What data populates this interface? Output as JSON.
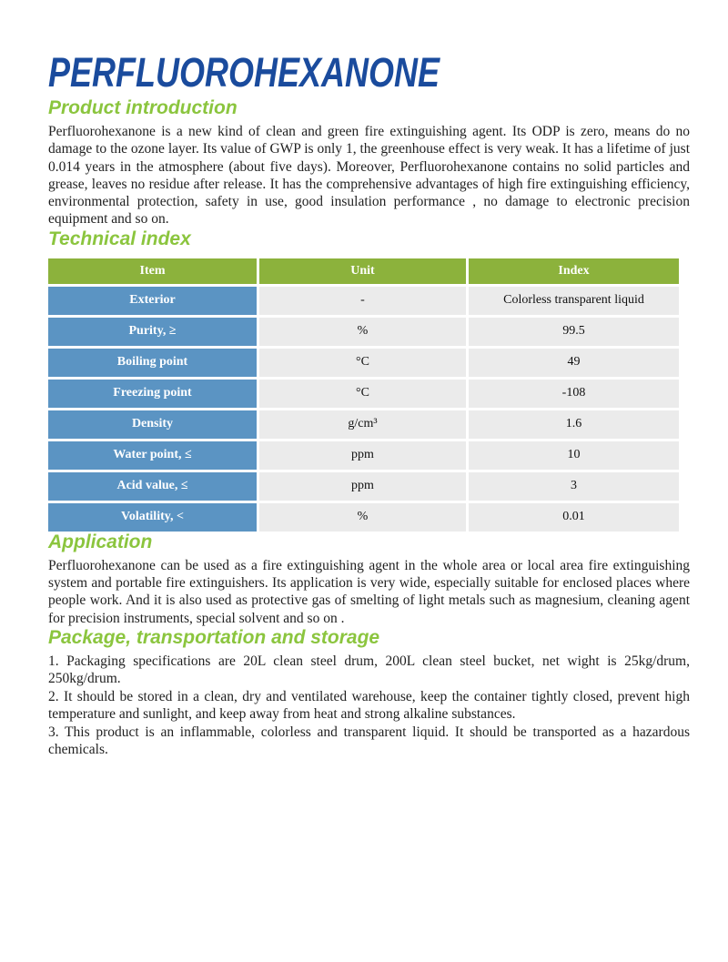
{
  "page": {
    "title": "PERFLUOROHEXANONE"
  },
  "colors": {
    "title_blue": "#1A4B9D",
    "heading_green": "#8BC53E",
    "table_header_green": "#8CB23C",
    "table_item_blue": "#5B94C3",
    "table_cell_gray": "#EBEBEB"
  },
  "sections": {
    "intro": {
      "heading": "Product introduction",
      "body": "Perfluorohexanone is a new kind of clean and green fire extinguishing agent. Its ODP is zero, means do no damage to the ozone layer. Its value of GWP is only 1, the greenhouse effect is very weak. It has a lifetime of just 0.014 years in the atmosphere (about five days). Moreover, Perfluorohexanone contains no solid particles and grease, leaves no residue after release. It has the comprehensive advantages of high fire extinguishing efficiency, environmental protection, safety in use, good insulation performance , no damage to electronic precision equipment and so on."
    },
    "technical": {
      "heading": "Technical index"
    },
    "application": {
      "heading": "Application",
      "body": "Perfluorohexanone can be used as a fire extinguishing agent in the whole area or local area fire extinguishing system and portable fire extinguishers. Its application is very wide, especially suitable for enclosed places where people work. And it is also used as protective gas of smelting of light metals such as magnesium, cleaning agent for precision instruments, special solvent and so on ."
    },
    "package": {
      "heading": "Package, transportation and storage",
      "items": [
        "1. Packaging specifications are 20L clean steel drum, 200L clean steel bucket, net wight is 25kg/drum, 250kg/drum.",
        "2. It should be stored in a clean, dry and ventilated warehouse, keep the container tightly closed, prevent high temperature and sunlight, and keep away from heat and strong alkaline substances.",
        "3. This product is an inflammable, colorless and transparent liquid. It should be transported as a hazardous chemicals."
      ]
    }
  },
  "table": {
    "headers": [
      "Item",
      "Unit",
      "Index"
    ],
    "rows": [
      {
        "item": "Exterior",
        "unit": "-",
        "index": "Colorless transparent liquid"
      },
      {
        "item": "Purity, ≥",
        "unit": "%",
        "index": "99.5"
      },
      {
        "item": "Boiling point",
        "unit": "°C",
        "index": "49"
      },
      {
        "item": "Freezing point",
        "unit": "°C",
        "index": "-108"
      },
      {
        "item": "Density",
        "unit": "g/cm³",
        "index": "1.6"
      },
      {
        "item": "Water point, ≤",
        "unit": "ppm",
        "index": "10"
      },
      {
        "item": "Acid value, ≤",
        "unit": "ppm",
        "index": "3"
      },
      {
        "item": "Volatility, <",
        "unit": "%",
        "index": "0.01"
      }
    ]
  }
}
